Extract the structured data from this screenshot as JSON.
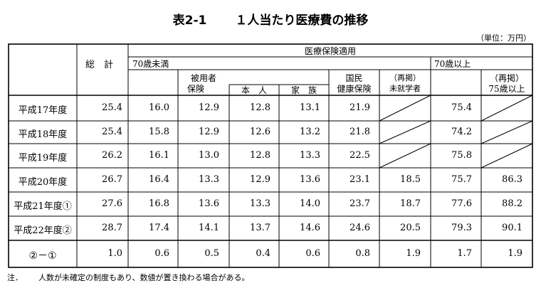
{
  "title_prefix": "表2-1",
  "title_main": "１人当たり医療費の推移",
  "unit_label": "（単位：万円）",
  "headers": {
    "total": "総　計",
    "insurance_applied": "医療保険適用",
    "under70": "70歳未満",
    "employee_line1": "被用者",
    "employee_line2": "保険",
    "principal": "本　人",
    "family": "家　族",
    "nhi_line1": "国民",
    "nhi_line2": "健康保険",
    "preschool_line1": "（再掲）",
    "preschool_line2": "未就学者",
    "over70": "70歳以上",
    "over75_line1": "（再掲）",
    "over75_line2": "75歳以上"
  },
  "rows": [
    {
      "label": "平成17年度",
      "values": [
        "25.4",
        "16.0",
        "12.9",
        "12.8",
        "13.1",
        "21.9",
        "",
        "75.4",
        ""
      ]
    },
    {
      "label": "平成18年度",
      "values": [
        "25.4",
        "15.8",
        "12.9",
        "12.6",
        "13.2",
        "21.8",
        "",
        "74.2",
        ""
      ]
    },
    {
      "label": "平成19年度",
      "values": [
        "26.2",
        "16.1",
        "13.0",
        "12.8",
        "13.3",
        "22.5",
        "",
        "75.8",
        ""
      ]
    },
    {
      "label": "平成20年度",
      "values": [
        "26.7",
        "16.4",
        "13.3",
        "12.9",
        "13.6",
        "23.1",
        "18.5",
        "75.7",
        "86.3"
      ]
    },
    {
      "label": "平成21年度①",
      "values": [
        "27.6",
        "16.8",
        "13.6",
        "13.3",
        "14.0",
        "23.7",
        "18.7",
        "77.6",
        "88.2"
      ]
    },
    {
      "label": "平成22年度②",
      "values": [
        "28.7",
        "17.4",
        "14.1",
        "13.7",
        "14.6",
        "24.6",
        "20.5",
        "79.3",
        "90.1"
      ]
    },
    {
      "label": "②－①",
      "values": [
        "1.0",
        "0.6",
        "0.5",
        "0.4",
        "0.6",
        "0.8",
        "1.9",
        "1.7",
        "1.9"
      ]
    }
  ],
  "note_label": "注．",
  "note_text": "人数が未確定の制度もあり、数値が置き換わる場合がある。"
}
